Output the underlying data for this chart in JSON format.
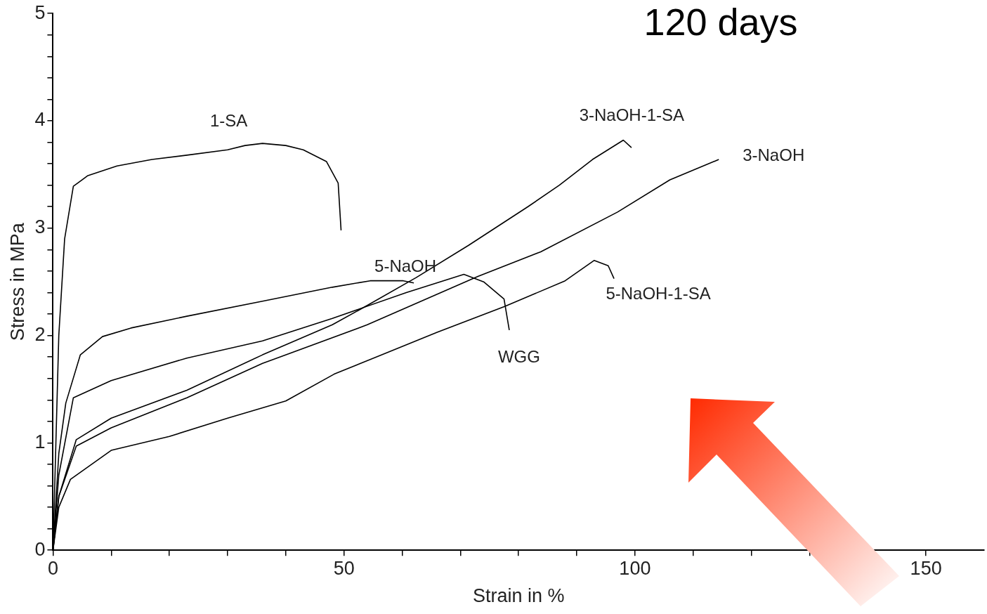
{
  "chart_data": {
    "type": "line",
    "title": "120 days",
    "xlabel": "Strain in %",
    "ylabel": "Stress in MPa",
    "xlim": [
      0,
      160
    ],
    "ylim": [
      0,
      5
    ],
    "xticks": [
      0,
      {
        "value": 10,
        "label": null
      },
      {
        "value": 20,
        "label": null
      },
      {
        "value": 30,
        "label": null
      },
      {
        "value": 40,
        "label": null
      },
      50,
      {
        "value": 60,
        "label": null
      },
      {
        "value": 70,
        "label": null
      },
      {
        "value": 80,
        "label": null
      },
      {
        "value": 90,
        "label": null
      },
      100,
      {
        "value": 110,
        "label": null
      },
      {
        "value": 120,
        "label": null
      },
      {
        "value": 130,
        "label": null
      },
      {
        "value": 140,
        "label": null
      },
      150
    ],
    "yticks": [
      0,
      {
        "value": 0.2,
        "label": null
      },
      {
        "value": 0.4,
        "label": null
      },
      {
        "value": 0.6,
        "label": null
      },
      {
        "value": 0.8,
        "label": null
      },
      1,
      {
        "value": 1.2,
        "label": null
      },
      {
        "value": 1.4,
        "label": null
      },
      {
        "value": 1.6,
        "label": null
      },
      {
        "value": 1.8,
        "label": null
      },
      2,
      {
        "value": 2.2,
        "label": null
      },
      {
        "value": 2.4,
        "label": null
      },
      {
        "value": 2.6,
        "label": null
      },
      {
        "value": 2.8,
        "label": null
      },
      3,
      {
        "value": 3.2,
        "label": null
      },
      {
        "value": 3.4,
        "label": null
      },
      {
        "value": 3.6,
        "label": null
      },
      {
        "value": 3.8,
        "label": null
      },
      4,
      {
        "value": 4.2,
        "label": null
      },
      {
        "value": 4.4,
        "label": null
      },
      {
        "value": 4.6,
        "label": null
      },
      {
        "value": 4.8,
        "label": null
      },
      5
    ],
    "grid": false,
    "legend": false,
    "marker": "none",
    "line_style": "solid",
    "series": [
      {
        "name": "1-SA",
        "color": "#000000",
        "x": [
          0,
          0.5,
          1,
          2,
          3.5,
          6,
          11,
          17,
          23,
          30,
          33,
          36,
          40,
          43,
          47,
          49,
          49.5
        ],
        "values": [
          0,
          1,
          2,
          2.9,
          3.39,
          3.49,
          3.58,
          3.64,
          3.68,
          3.73,
          3.77,
          3.79,
          3.77,
          3.73,
          3.62,
          3.42,
          2.98
        ]
      },
      {
        "name": "5-NaOH",
        "color": "#000000",
        "x": [
          0,
          1,
          2.2,
          4.7,
          8.5,
          13.4,
          23,
          36,
          48,
          54.5,
          60.2,
          62
        ],
        "values": [
          0,
          0.9,
          1.37,
          1.82,
          1.99,
          2.07,
          2.18,
          2.32,
          2.45,
          2.51,
          2.51,
          2.49
        ]
      },
      {
        "name": "WGG",
        "color": "#000000",
        "x": [
          0,
          1,
          3.5,
          10,
          23,
          36,
          48,
          60.7,
          70.6,
          74,
          77.5,
          78.4
        ],
        "values": [
          0,
          0.7,
          1.42,
          1.58,
          1.79,
          1.95,
          2.16,
          2.4,
          2.57,
          2.5,
          2.34,
          2.05
        ]
      },
      {
        "name": "3-NaOH-1-SA",
        "color": "#000000",
        "x": [
          0,
          1,
          4,
          10,
          23,
          36,
          48,
          54,
          62.4,
          71.4,
          81.6,
          87,
          92.7,
          98,
          99.4
        ],
        "values": [
          0,
          0.5,
          1.03,
          1.23,
          1.49,
          1.82,
          2.1,
          2.28,
          2.54,
          2.84,
          3.2,
          3.4,
          3.64,
          3.82,
          3.75
        ]
      },
      {
        "name": "3-NaOH",
        "color": "#000000",
        "x": [
          0,
          1,
          4,
          10,
          23,
          36,
          54,
          73,
          83.8,
          97,
          106,
          114.4
        ],
        "values": [
          0,
          0.5,
          0.97,
          1.14,
          1.42,
          1.74,
          2.1,
          2.55,
          2.78,
          3.15,
          3.45,
          3.64
        ]
      },
      {
        "name": "5-NaOH-1-SA",
        "color": "#000000",
        "x": [
          0,
          1,
          3,
          10,
          20,
          30,
          40,
          48.3,
          66,
          77.6,
          88,
          93,
          95.4,
          96.4
        ],
        "values": [
          0,
          0.4,
          0.66,
          0.93,
          1.06,
          1.23,
          1.39,
          1.64,
          2.03,
          2.27,
          2.51,
          2.7,
          2.65,
          2.53
        ]
      }
    ]
  }
}
